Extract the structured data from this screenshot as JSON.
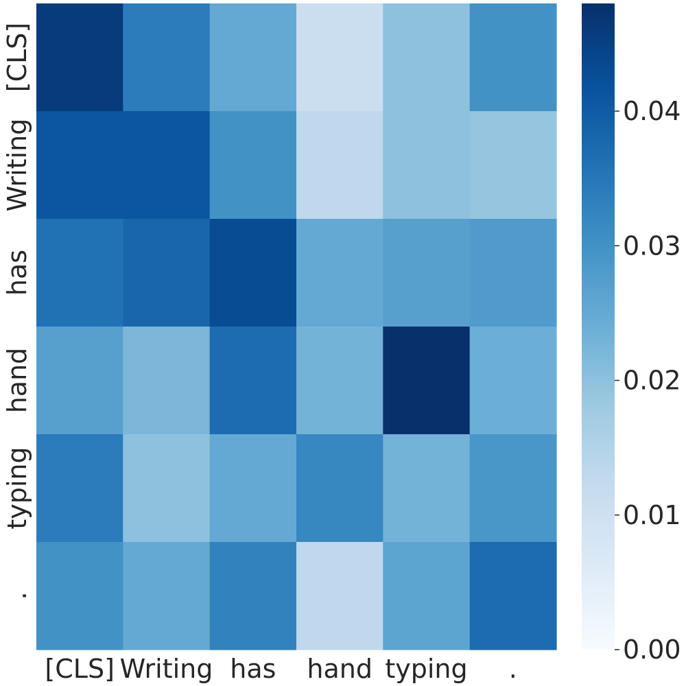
{
  "chart_data": {
    "type": "heatmap",
    "title": "",
    "xlabel": "",
    "ylabel": "",
    "x_labels": [
      "[CLS]",
      "Writing",
      "has",
      "hand",
      "typing",
      "."
    ],
    "y_labels": [
      "[CLS]",
      "Writing",
      "has",
      "hand",
      "typing",
      "."
    ],
    "values": [
      [
        0.046,
        0.034,
        0.025,
        0.011,
        0.02,
        0.03
      ],
      [
        0.041,
        0.041,
        0.03,
        0.013,
        0.02,
        0.019
      ],
      [
        0.036,
        0.038,
        0.043,
        0.025,
        0.027,
        0.028
      ],
      [
        0.027,
        0.022,
        0.037,
        0.023,
        0.048,
        0.024
      ],
      [
        0.034,
        0.02,
        0.025,
        0.032,
        0.023,
        0.029
      ],
      [
        0.03,
        0.025,
        0.033,
        0.013,
        0.026,
        0.037
      ]
    ],
    "colorbar": {
      "range": [
        0.0,
        0.048
      ],
      "ticks": [
        0.0,
        0.01,
        0.02,
        0.03,
        0.04
      ],
      "tick_labels": [
        "0.00",
        "0.01",
        "0.02",
        "0.03",
        "0.04"
      ],
      "colormap": "Blues"
    },
    "grid": false,
    "legend": "none"
  }
}
